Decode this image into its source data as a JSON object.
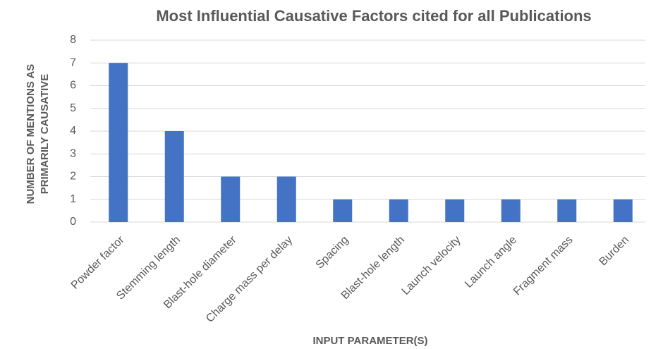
{
  "chart_data": {
    "type": "bar",
    "title": "Most Influential Causative Factors cited for all Publications",
    "x_label": "INPUT PARAMETER(S)",
    "y_label": "NUMBER OF MENTIONS AS PRIMARILY CAUSATIVE",
    "categories": [
      "Powder factor",
      "Stemming length",
      "Blast-hole diameter",
      "Charge mass per delay",
      "Spacing",
      "Blast-hole length",
      "Launch velocity",
      "Launch angle",
      "Fragment mass",
      "Burden"
    ],
    "values": [
      7,
      4,
      2,
      2,
      1,
      1,
      1,
      1,
      1,
      1
    ],
    "color": "#4472c4",
    "ylim": [
      0,
      8
    ],
    "yticks": [
      0,
      1,
      2,
      3,
      4,
      5,
      6,
      7,
      8
    ],
    "grid": true
  }
}
